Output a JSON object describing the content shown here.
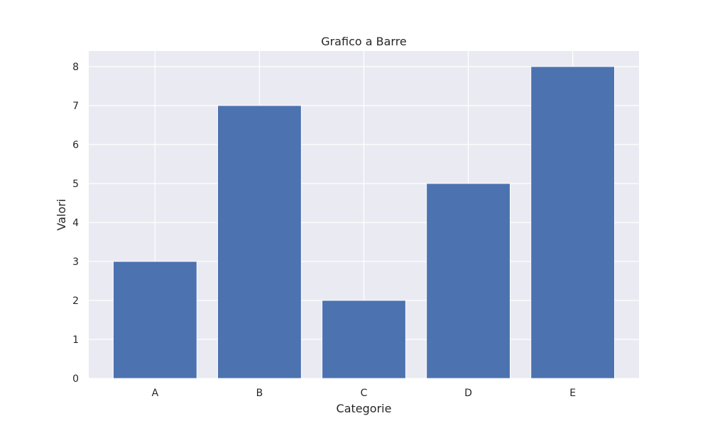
{
  "chart_data": {
    "type": "bar",
    "title": "Grafico a Barre",
    "xlabel": "Categorie",
    "ylabel": "Valori",
    "categories": [
      "A",
      "B",
      "C",
      "D",
      "E"
    ],
    "values": [
      3,
      7,
      2,
      5,
      8
    ],
    "ylim": [
      0,
      8.4
    ],
    "yticks": [
      0,
      1,
      2,
      3,
      4,
      5,
      6,
      7,
      8
    ],
    "grid": true,
    "colors": {
      "bar": "#4c72b0",
      "plot_background": "#eaeaf2",
      "grid": "#ffffff"
    }
  }
}
